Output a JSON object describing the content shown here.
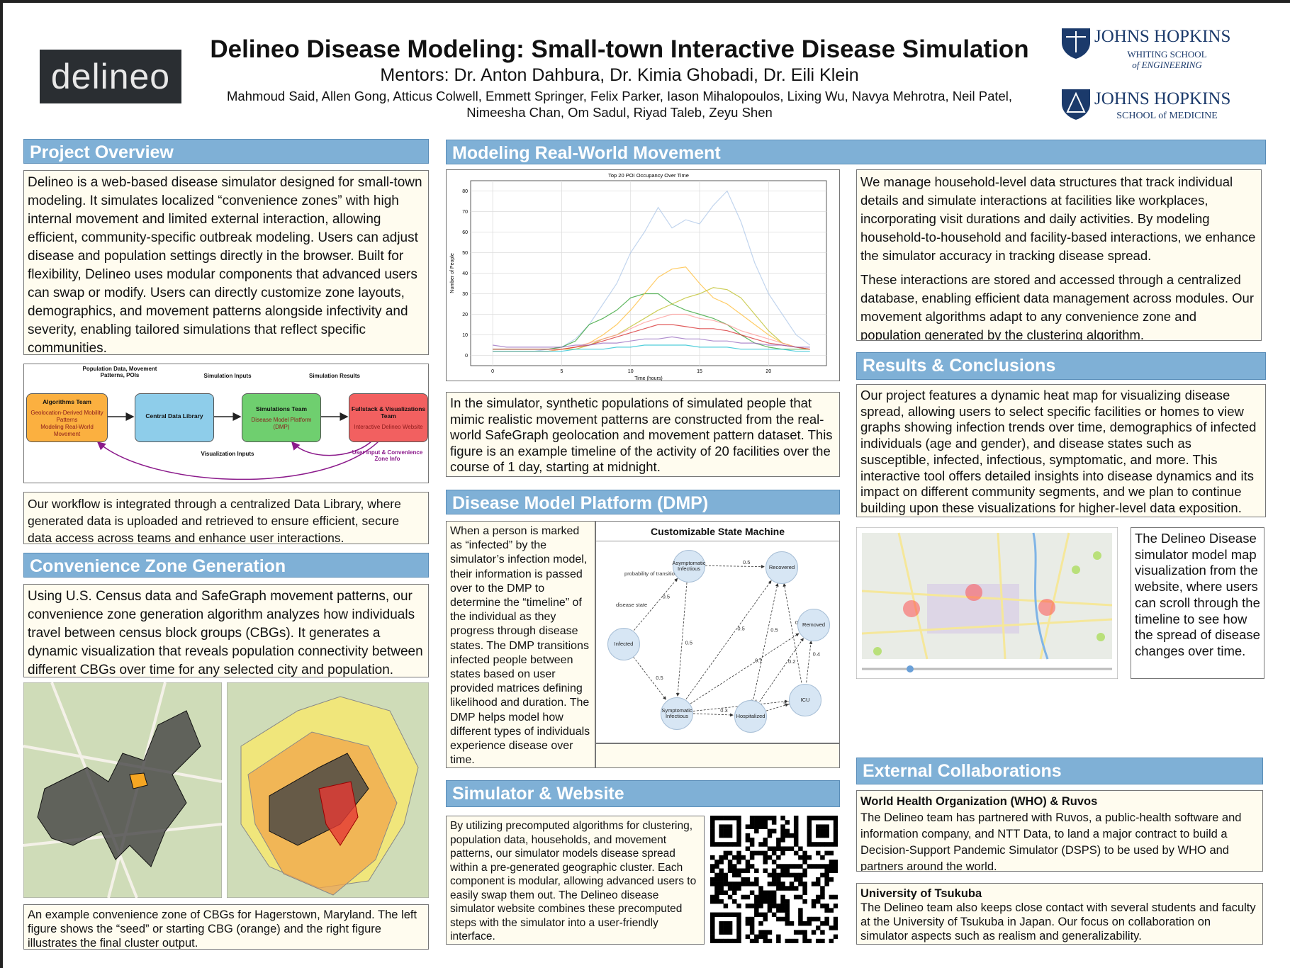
{
  "header": {
    "logo": "delineo",
    "title": "Delineo Disease Modeling: Small-town Interactive Disease Simulation",
    "mentors": "Mentors: Dr. Anton Dahbura, Dr. Kimia Ghobadi, Dr. Eili Klein",
    "authors": "Mahmoud Said, Allen Gong, Atticus Colwell, Emmett Springer, Felix Parker, Iason Mihalopoulos, Lixing Wu, Navya Mehrotra, Neil Patel, Nimeesha Chan, Om Sadul, Riyad Taleb, Zeyu Shen",
    "jhu_engineering": [
      "JOHNS HOPKINS",
      "WHITING SCHOOL",
      "of ENGINEERING"
    ],
    "jhu_medicine": [
      "JOHNS HOPKINS",
      "SCHOOL of MEDICINE"
    ]
  },
  "project_overview": {
    "heading": "Project Overview",
    "text": "Delineo is a web-based disease simulator designed for small-town modeling. It simulates localized “convenience zones” with high internal movement and limited external interaction, allowing efficient, community-specific outbreak modeling. Users can adjust disease and population settings directly in the browser. Built for flexibility, Delineo uses modular components that advanced users can swap or modify. Users can directly customize zone layouts, demographics, and movement patterns alongside infectivity and severity, enabling tailored simulations that reflect specific communities.",
    "workflow": {
      "top_labels": [
        "Population Data, Movement Patterns, POIs",
        "Simulation Inputs",
        "Simulation Results"
      ],
      "boxes": [
        {
          "title": "Algorithms Team",
          "lines": [
            "Geolocation-Derived Mobility Patterns",
            "Modeling Real-World Movement"
          ]
        },
        {
          "title": "Central Data Library",
          "lines": []
        },
        {
          "title": "Simulations Team",
          "lines": [
            "Disease Model Platform (DMP)"
          ]
        },
        {
          "title": "Fullstack & Visualizations Team",
          "lines": [
            "Interactive Delineo Website"
          ]
        }
      ],
      "bottom_labels": [
        "Visualization Inputs",
        "User Input & Convenience Zone Info"
      ]
    },
    "workflow_text": "Our workflow is integrated through a centralized Data Library, where generated data is uploaded and retrieved to ensure efficient, secure data access across teams and enhance user interactions."
  },
  "convenience_zone": {
    "heading": "Convenience Zone Generation",
    "text": "Using U.S. Census data and SafeGraph movement patterns, our convenience zone generation algorithm analyzes how individuals travel between census block groups (CBGs). It generates a dynamic visualization that reveals population connectivity between different CBGs over time for any selected city and population.",
    "caption": "An example convenience zone of CBGs for Hagerstown, Maryland. The left figure shows the “seed” or starting CBG (orange) and the right figure illustrates the final cluster output."
  },
  "movement": {
    "heading": "Modeling Real-World Movement",
    "text": [
      "We manage household-level data structures that track individual details and simulate interactions at facilities like workplaces, incorporating visit durations and daily activities. By modeling household-to-household and facility-based interactions, we enhance the simulator accuracy in tracking disease spread.",
      "These interactions are stored and accessed through a centralized database, enabling efficient data management across modules. Our movement algorithms adapt to any convenience zone and population generated by the clustering algorithm."
    ],
    "caption": "In the simulator, synthetic populations of simulated people that mimic realistic movement patterns are constructed from the real-world SafeGraph geolocation and movement pattern dataset. This figure is an example timeline of the activity of 20 facilities over the course of 1 day, starting at midnight."
  },
  "chart_data": {
    "type": "line",
    "title": "Top 20 POI Occupancy Over Time",
    "x_label": "Time (hours)",
    "y_label": "Number of People",
    "x": [
      0,
      1,
      2,
      3,
      4,
      5,
      6,
      7,
      8,
      9,
      10,
      11,
      12,
      13,
      14,
      15,
      16,
      17,
      18,
      19,
      20,
      21,
      22,
      23
    ],
    "xlim": [
      -1.6,
      24.2
    ],
    "ylim": [
      -5,
      85
    ],
    "xticks": [
      0,
      5,
      10,
      15,
      20
    ],
    "yticks": [
      0,
      10,
      20,
      30,
      40,
      50,
      60,
      70,
      80
    ],
    "grid": true,
    "series": [
      {
        "color": "#aec7e8",
        "values": [
          2,
          2,
          2,
          2,
          3,
          4,
          8,
          15,
          25,
          35,
          50,
          60,
          72,
          62,
          66,
          64,
          73,
          80,
          65,
          45,
          30,
          20,
          10,
          5
        ]
      },
      {
        "color": "#2ca02c",
        "values": [
          3,
          3,
          3,
          3,
          3,
          4,
          7,
          15,
          18,
          22,
          28,
          30,
          30,
          25,
          22,
          20,
          18,
          15,
          10,
          6,
          4,
          3,
          3,
          3
        ]
      },
      {
        "color": "#ffbb33",
        "values": [
          2,
          2,
          2,
          2,
          2,
          3,
          4,
          6,
          10,
          15,
          22,
          30,
          38,
          42,
          43,
          35,
          28,
          25,
          20,
          15,
          10,
          6,
          4,
          3
        ]
      },
      {
        "color": "#bcbd22",
        "values": [
          2,
          2,
          2,
          2,
          2,
          3,
          3,
          5,
          8,
          10,
          14,
          18,
          22,
          25,
          28,
          30,
          33,
          32,
          28,
          20,
          12,
          6,
          4,
          3
        ]
      },
      {
        "color": "#ff9896",
        "values": [
          2,
          2,
          2,
          2,
          2,
          3,
          4,
          6,
          8,
          10,
          13,
          16,
          18,
          20,
          20,
          18,
          17,
          15,
          12,
          10,
          8,
          6,
          4,
          3
        ]
      },
      {
        "color": "#d62728",
        "values": [
          3,
          3,
          3,
          3,
          3,
          3,
          4,
          5,
          7,
          9,
          11,
          13,
          15,
          15,
          14,
          13,
          13,
          12,
          10,
          8,
          6,
          5,
          4,
          3
        ]
      },
      {
        "color": "#9467bd",
        "values": [
          5,
          4,
          4,
          4,
          4,
          4,
          5,
          5,
          6,
          6,
          7,
          8,
          8,
          9,
          8,
          8,
          7,
          7,
          6,
          6,
          5,
          5,
          4,
          4
        ]
      },
      {
        "color": "#17becf",
        "values": [
          2,
          2,
          2,
          2,
          2,
          2,
          3,
          3,
          3,
          4,
          4,
          5,
          5,
          5,
          5,
          4,
          4,
          4,
          3,
          3,
          3,
          3,
          2,
          2
        ]
      }
    ]
  },
  "dmp": {
    "heading": "Disease Model Platform (DMP)",
    "text": "When a person is marked as “infected” by the simulator’s infection model, their information is passed over to the DMP to determine the “timeline” of the individual as they progress through disease states. The DMP transitions infected people between states based on user provided matrices defining likelihood and duration. The DMP helps model how different types of individuals experience disease over time.",
    "state_machine": {
      "title": "Customizable State Machine",
      "annotations": [
        "probability of transition",
        "disease state"
      ],
      "nodes": [
        "Asymptomatic Infectious",
        "Recovered",
        "Infected",
        "Removed",
        "Symptomatic Infectious",
        "Hospitalized",
        "ICU"
      ],
      "edges": [
        {
          "label": "0.5"
        },
        {
          "label": "0.5"
        },
        {
          "label": "0.5"
        },
        {
          "label": "0.5"
        },
        {
          "label": "0.5"
        },
        {
          "label": "0.1"
        },
        {
          "label": "0.5"
        },
        {
          "label": "0.6"
        },
        {
          "label": "0.2"
        },
        {
          "label": "0.4"
        },
        {
          "label": "0.1"
        },
        {
          "label": "0.3"
        },
        {
          "label": "0.2"
        }
      ]
    }
  },
  "simulator": {
    "heading": "Simulator & Website",
    "text": "By utilizing precomputed algorithms for clustering, population data, households, and movement patterns, our simulator models disease spread within a pre-generated geographic cluster. Each component is modular, allowing advanced users to easily swap them out. The Delineo disease simulator website combines these precomputed steps with the simulator into a user-friendly interface."
  },
  "results": {
    "heading": "Results & Conclusions",
    "text": "Our project features a dynamic heat map for visualizing disease spread, allowing users to select specific facilities or homes to view graphs showing infection trends over time, demographics of infected individuals (age and gender), and disease states such as susceptible, infected, infectious, symptomatic, and more. This interactive tool offers detailed insights into disease dynamics and its impact on different community segments, and we plan to continue building upon these visualizations for higher-level data exposition.",
    "map_caption": "The Delineo Disease simulator model map visualization from the website, where users can scroll through the timeline to see how the spread of disease changes over time."
  },
  "collaborations": {
    "heading": "External Collaborations",
    "items": [
      {
        "title": "World Health Organization (WHO) & Ruvos",
        "text": "The Delineo team has partnered with Ruvos, a public-health software and information company, and NTT Data, to land a major contract to build a Decision-Support Pandemic Simulator (DSPS) to be used by WHO and partners around the world."
      },
      {
        "title": "University of Tsukuba",
        "text": "The Delineo team also keeps close contact with several students and faculty at the University of Tsukuba in Japan. Our focus on collaboration on simulator aspects such as realism and generalizability."
      }
    ]
  }
}
